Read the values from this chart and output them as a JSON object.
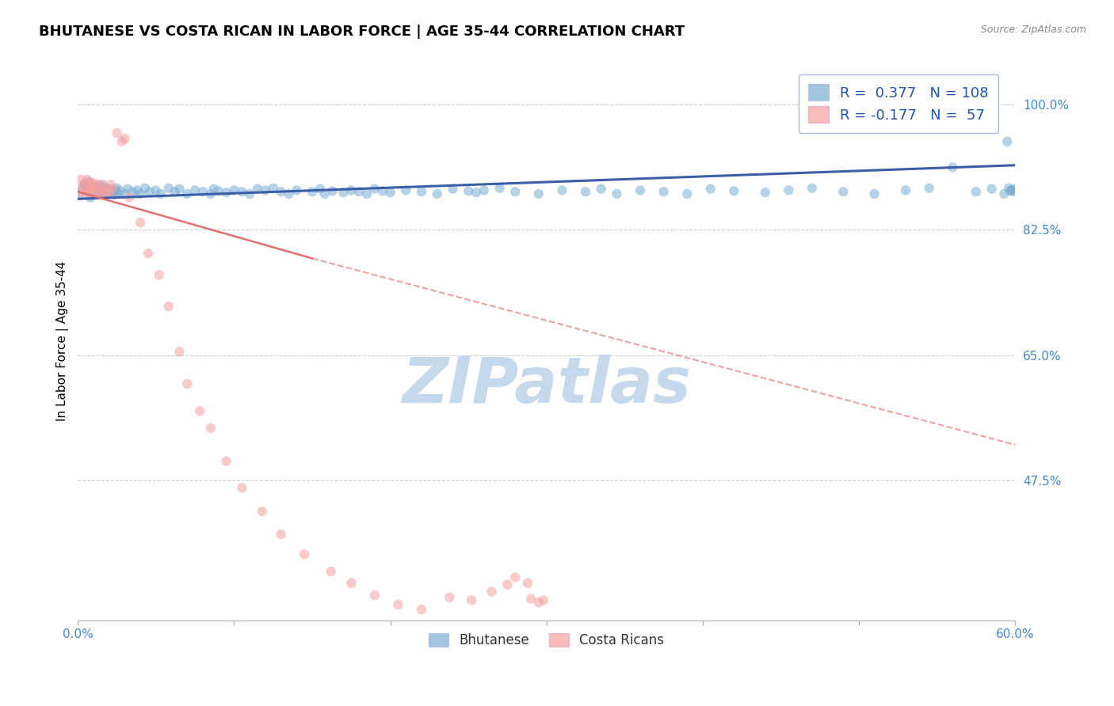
{
  "title": "BHUTANESE VS COSTA RICAN IN LABOR FORCE | AGE 35-44 CORRELATION CHART",
  "source_text": "Source: ZipAtlas.com",
  "ylabel": "In Labor Force | Age 35-44",
  "xlim": [
    0.0,
    0.6
  ],
  "ylim": [
    0.28,
    1.06
  ],
  "xtick_positions": [
    0.0,
    0.1,
    0.2,
    0.3,
    0.4,
    0.5,
    0.6
  ],
  "xticklabels_show": [
    "0.0%",
    "",
    "",
    "",
    "",
    "",
    "60.0%"
  ],
  "ytick_positions": [
    0.475,
    0.65,
    0.825,
    1.0
  ],
  "yticklabels": [
    "47.5%",
    "65.0%",
    "82.5%",
    "100.0%"
  ],
  "blue_R": 0.377,
  "blue_N": 108,
  "pink_R": -0.177,
  "pink_N": 57,
  "blue_scatter_color": "#7BADD4",
  "pink_scatter_color": "#F4A0A0",
  "blue_line_color": "#3A5FA8",
  "pink_line_color": "#E07070",
  "trend_blue_x0": 0.0,
  "trend_blue_x1": 0.6,
  "trend_blue_y0": 0.868,
  "trend_blue_y1": 0.915,
  "trend_pink_solid_x0": 0.0,
  "trend_pink_solid_x1": 0.15,
  "trend_pink_solid_y0": 0.878,
  "trend_pink_solid_y1": 0.785,
  "trend_pink_dash_x0": 0.15,
  "trend_pink_dash_x1": 0.6,
  "trend_pink_dash_y0": 0.785,
  "trend_pink_dash_y1": 0.525,
  "watermark": "ZIPatlas",
  "watermark_color": "#C5D8EC",
  "background_color": "#FFFFFF",
  "grid_color": "#BBBBBB",
  "title_color": "#000000",
  "tick_color": "#4488CC",
  "legend_R_color": "#2255AA",
  "legend_N_color": "#EE4444",
  "blue_scatter_x": [
    0.001,
    0.003,
    0.004,
    0.005,
    0.006,
    0.007,
    0.008,
    0.008,
    0.009,
    0.01,
    0.01,
    0.011,
    0.012,
    0.012,
    0.013,
    0.013,
    0.014,
    0.015,
    0.015,
    0.016,
    0.017,
    0.018,
    0.018,
    0.019,
    0.02,
    0.021,
    0.022,
    0.023,
    0.024,
    0.025,
    0.025,
    0.027,
    0.03,
    0.032,
    0.035,
    0.038,
    0.04,
    0.043,
    0.046,
    0.05,
    0.053,
    0.058,
    0.062,
    0.065,
    0.07,
    0.075,
    0.08,
    0.085,
    0.087,
    0.09,
    0.095,
    0.1,
    0.105,
    0.11,
    0.115,
    0.12,
    0.125,
    0.13,
    0.135,
    0.14,
    0.15,
    0.155,
    0.158,
    0.163,
    0.17,
    0.175,
    0.18,
    0.185,
    0.19,
    0.195,
    0.2,
    0.21,
    0.22,
    0.23,
    0.24,
    0.25,
    0.255,
    0.26,
    0.27,
    0.28,
    0.295,
    0.31,
    0.325,
    0.335,
    0.345,
    0.36,
    0.375,
    0.39,
    0.405,
    0.42,
    0.44,
    0.455,
    0.47,
    0.49,
    0.51,
    0.53,
    0.545,
    0.56,
    0.575,
    0.585,
    0.593,
    0.597,
    0.598,
    0.599,
    0.6,
    0.598,
    0.596,
    0.595
  ],
  "blue_scatter_y": [
    0.875,
    0.882,
    0.888,
    0.885,
    0.878,
    0.892,
    0.88,
    0.87,
    0.878,
    0.885,
    0.877,
    0.88,
    0.875,
    0.883,
    0.878,
    0.886,
    0.875,
    0.88,
    0.887,
    0.878,
    0.882,
    0.876,
    0.883,
    0.879,
    0.877,
    0.882,
    0.878,
    0.874,
    0.88,
    0.876,
    0.883,
    0.879,
    0.875,
    0.882,
    0.878,
    0.88,
    0.875,
    0.883,
    0.878,
    0.88,
    0.875,
    0.883,
    0.878,
    0.882,
    0.875,
    0.88,
    0.878,
    0.875,
    0.882,
    0.879,
    0.877,
    0.88,
    0.878,
    0.875,
    0.882,
    0.88,
    0.883,
    0.878,
    0.875,
    0.88,
    0.878,
    0.882,
    0.875,
    0.879,
    0.877,
    0.88,
    0.878,
    0.875,
    0.882,
    0.879,
    0.877,
    0.88,
    0.878,
    0.875,
    0.882,
    0.879,
    0.877,
    0.88,
    0.883,
    0.878,
    0.875,
    0.88,
    0.878,
    0.882,
    0.875,
    0.88,
    0.878,
    0.875,
    0.882,
    0.879,
    0.877,
    0.88,
    0.883,
    0.878,
    0.875,
    0.88,
    0.883,
    0.912,
    0.878,
    0.882,
    0.875,
    0.879,
    0.88,
    0.882,
    0.878,
    0.88,
    0.883,
    0.948
  ],
  "pink_scatter_x": [
    0.001,
    0.002,
    0.003,
    0.004,
    0.005,
    0.006,
    0.006,
    0.007,
    0.007,
    0.008,
    0.008,
    0.009,
    0.01,
    0.01,
    0.011,
    0.012,
    0.013,
    0.014,
    0.015,
    0.016,
    0.017,
    0.018,
    0.019,
    0.02,
    0.021,
    0.022,
    0.025,
    0.028,
    0.03,
    0.033,
    0.04,
    0.045,
    0.052,
    0.058,
    0.065,
    0.07,
    0.078,
    0.085,
    0.095,
    0.105,
    0.118,
    0.13,
    0.145,
    0.162,
    0.175,
    0.19,
    0.205,
    0.22,
    0.238,
    0.252,
    0.265,
    0.275,
    0.28,
    0.288,
    0.29,
    0.295,
    0.298
  ],
  "pink_scatter_y": [
    0.882,
    0.895,
    0.875,
    0.888,
    0.878,
    0.882,
    0.895,
    0.878,
    0.89,
    0.882,
    0.875,
    0.888,
    0.88,
    0.89,
    0.882,
    0.875,
    0.888,
    0.882,
    0.875,
    0.888,
    0.88,
    0.875,
    0.882,
    0.875,
    0.888,
    0.882,
    0.96,
    0.948,
    0.952,
    0.87,
    0.835,
    0.792,
    0.762,
    0.718,
    0.655,
    0.61,
    0.572,
    0.548,
    0.502,
    0.465,
    0.432,
    0.4,
    0.372,
    0.348,
    0.332,
    0.315,
    0.302,
    0.295,
    0.312,
    0.308,
    0.32,
    0.33,
    0.34,
    0.332,
    0.31,
    0.305,
    0.308
  ]
}
